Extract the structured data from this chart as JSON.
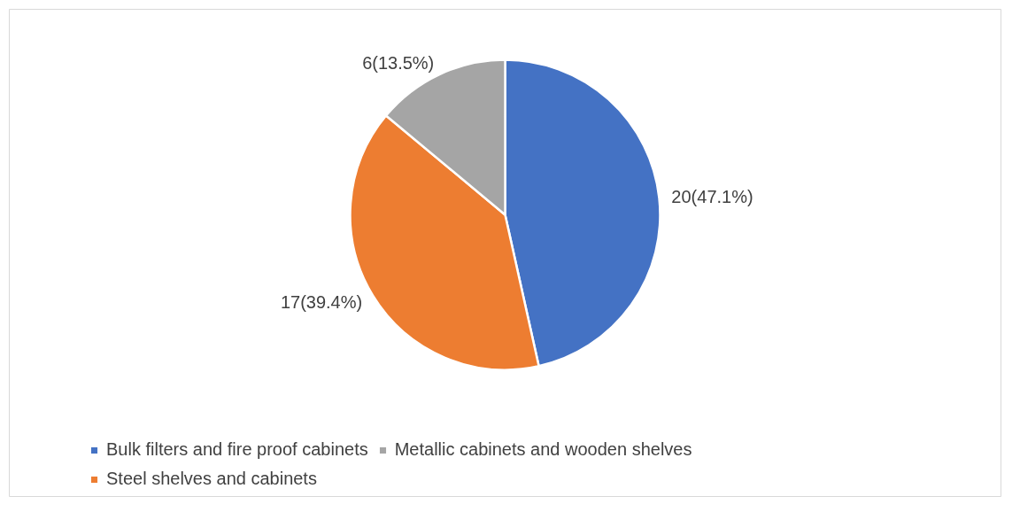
{
  "chart_data": {
    "type": "pie",
    "categories": [
      "Bulk filters and fire proof cabinets",
      "Steel shelves and cabinets",
      "Metallic cabinets and wooden shelves"
    ],
    "values": [
      20,
      17,
      6
    ],
    "colors": [
      "#4472c4",
      "#ed7d31",
      "#a5a5a5"
    ],
    "value_labels": [
      "20(47.1%)",
      "17(39.4%)",
      "6(13.5%)"
    ],
    "legend": "bottom"
  }
}
